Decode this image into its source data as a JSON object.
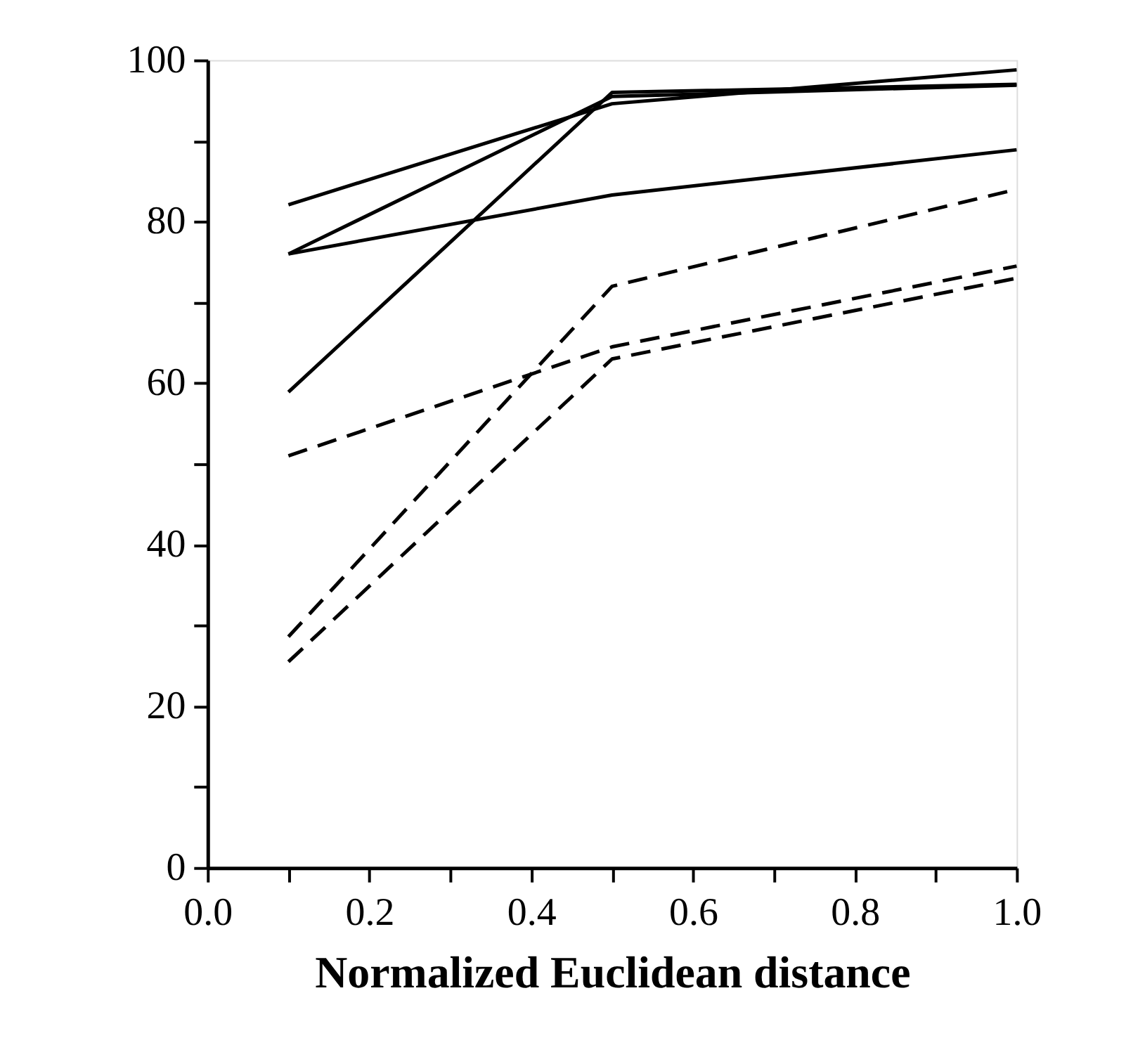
{
  "chart_data": {
    "type": "line",
    "xlabel": "Normalized Euclidean distance",
    "x": [
      0.1,
      0.5,
      1.0
    ],
    "series": [
      {
        "color": "#000000",
        "line_style": "solid",
        "values": [
          82.1,
          94.6,
          98.8
        ]
      },
      {
        "color": "#000000",
        "line_style": "solid",
        "values": [
          76,
          95.5,
          96.9
        ]
      },
      {
        "color": "#000000",
        "line_style": "solid",
        "values": [
          76,
          83.3,
          88.9
        ]
      },
      {
        "color": "#000000",
        "line_style": "solid",
        "values": [
          58.9,
          96,
          97
        ]
      },
      {
        "color": "#000000",
        "line_style": "dashed",
        "values": [
          51,
          64.5,
          74.5
        ]
      },
      {
        "color": "#000000",
        "line_style": "dashed",
        "values": [
          28.6,
          72,
          84
        ]
      },
      {
        "color": "#000000",
        "line_style": "dashed",
        "values": [
          25.5,
          63,
          73
        ]
      }
    ],
    "xlim": [
      0,
      1.0
    ],
    "xticks": [
      {
        "value": 0,
        "label": "0.0"
      },
      {
        "value": 0.1,
        "label": null
      },
      {
        "value": 0.2,
        "label": "0.2"
      },
      {
        "value": 0.3,
        "label": null
      },
      {
        "value": 0.4,
        "label": "0.4"
      },
      {
        "value": 0.5,
        "label": null
      },
      {
        "value": 0.6,
        "label": "0.6"
      },
      {
        "value": 0.7,
        "label": null
      },
      {
        "value": 0.8,
        "label": "0.8"
      },
      {
        "value": 0.9,
        "label": null
      },
      {
        "value": 1.0,
        "label": "1.0"
      }
    ],
    "ylim": [
      0,
      100
    ],
    "yticks": [
      0,
      {
        "value": 10,
        "label": null
      },
      20,
      {
        "value": 30,
        "label": null
      },
      40,
      {
        "value": 50,
        "label": null
      },
      60,
      {
        "value": 70,
        "label": null
      },
      80,
      {
        "value": 90,
        "label": null
      },
      100
    ],
    "grid": false,
    "legend": false,
    "marker": "none"
  }
}
